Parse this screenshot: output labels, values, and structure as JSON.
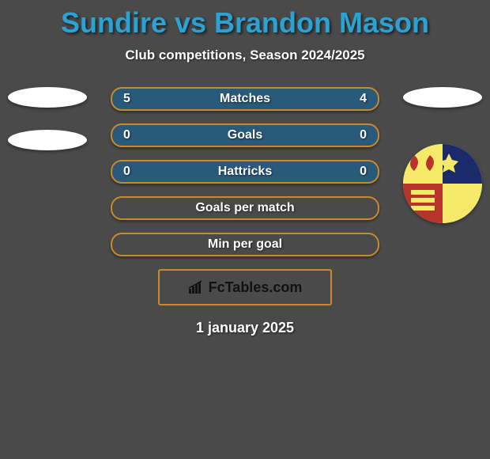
{
  "title": "Sundire vs Brandon Mason",
  "title_color": "#2aa3d4",
  "subtitle": "Club competitions, Season 2024/2025",
  "background_color": "#4a4a4a",
  "stat_rows": [
    {
      "label": "Matches",
      "left": "5",
      "right": "4",
      "bg": "#2a5a7a",
      "border": "#c98a2a"
    },
    {
      "label": "Goals",
      "left": "0",
      "right": "0",
      "bg": "#2a5a7a",
      "border": "#c98a2a"
    },
    {
      "label": "Hattricks",
      "left": "0",
      "right": "0",
      "bg": "#2a5a7a",
      "border": "#c98a2a"
    },
    {
      "label": "Goals per match",
      "left": "",
      "right": "",
      "bg": "#4a4a4a",
      "border": "#c98a2a"
    },
    {
      "label": "Min per goal",
      "left": "",
      "right": "",
      "bg": "#4a4a4a",
      "border": "#c98a2a"
    }
  ],
  "row_style": {
    "height": 30,
    "border_radius": 14,
    "border_width": 2,
    "font_size": 16,
    "text_color": "#ffffff",
    "gap": 16
  },
  "left_avatars": {
    "ellipse_count": 2,
    "ellipse_color": "#ffffff"
  },
  "right_avatars": {
    "ellipse_count": 1,
    "ellipse_color": "#ffffff",
    "crest": {
      "ring_color": "#ffffff",
      "q1_color": "#f5e96a",
      "q2_color": "#1a2a6a",
      "q3_color": "#b8332a",
      "q4_color": "#f5e96a"
    }
  },
  "fctables": {
    "label": "FcTables.com",
    "border_color": "#c98a2a",
    "bar_color": "#111111"
  },
  "date": "1 january 2025"
}
